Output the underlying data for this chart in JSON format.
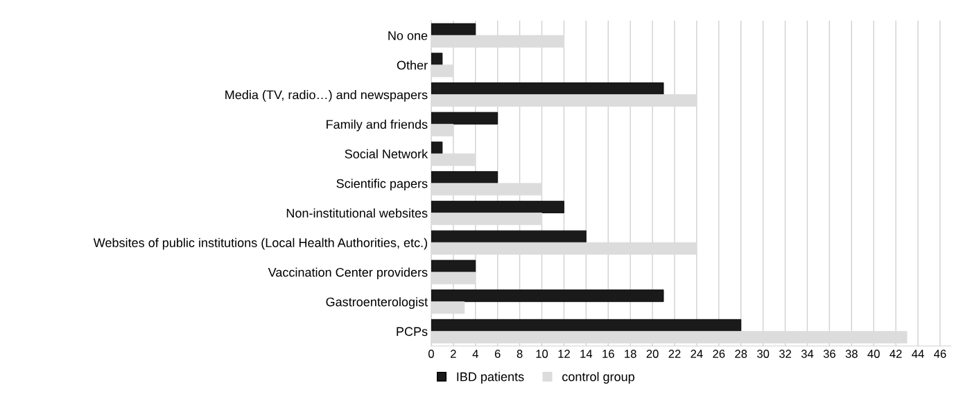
{
  "chart_data": {
    "type": "bar",
    "orientation": "horizontal",
    "categories": [
      "No one",
      "Other",
      "Media (TV, radio…) and newspapers",
      "Family and friends",
      "Social Network",
      "Scientific papers",
      "Non-institutional websites",
      "Websites of public institutions (Local Health Authorities, etc.)",
      "Vaccination Center providers",
      "Gastroenterologist",
      "PCPs"
    ],
    "series": [
      {
        "name": "IBD patients",
        "color": "#1a1a1a",
        "values": [
          4,
          1,
          21,
          6,
          1,
          6,
          12,
          14,
          4,
          21,
          28
        ]
      },
      {
        "name": "control group",
        "color": "#dcdcdc",
        "values": [
          12,
          2,
          24,
          2,
          4,
          10,
          10,
          24,
          4,
          3,
          43
        ]
      }
    ],
    "xlim": [
      0,
      47
    ],
    "xticks": [
      0,
      2,
      4,
      6,
      8,
      10,
      12,
      14,
      16,
      18,
      20,
      22,
      24,
      26,
      28,
      30,
      32,
      34,
      36,
      38,
      40,
      42,
      44,
      46
    ],
    "grid": "x",
    "legend": "bottom"
  }
}
